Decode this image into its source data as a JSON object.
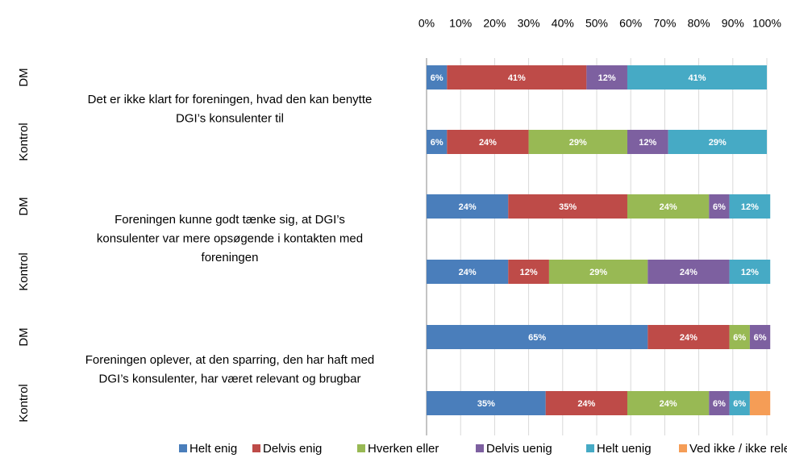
{
  "chart_data": {
    "type": "stacked_barh",
    "categories": [
      "DM",
      "Kontrol",
      "DM",
      "Kontrol",
      "DM",
      "Kontrol"
    ],
    "groups": [
      [
        "Det er ikke klart for foreningen, hvad den kan benytte",
        "DGI’s konsulenter til"
      ],
      [
        "Foreningen kunne godt tænke sig, at DGI’s",
        "konsulenter var mere opsøgende i kontakten med",
        "foreningen"
      ],
      [
        "Foreningen oplever, at den sparring, den har haft med",
        "DGI’s konsulenter, har været relevant og brugbar"
      ]
    ],
    "series": [
      {
        "name": "Helt enig",
        "color": "#4a7ebb",
        "values": [
          6,
          6,
          24,
          24,
          65,
          35
        ],
        "value_labels": [
          "6%",
          "6%",
          "24%",
          "24%",
          "65%",
          "35%"
        ]
      },
      {
        "name": "Delvis enig",
        "color": "#be4b48",
        "values": [
          41,
          24,
          35,
          12,
          24,
          24
        ],
        "value_labels": [
          "41%",
          "24%",
          "35%",
          "12%",
          "24%",
          "24%"
        ]
      },
      {
        "name": "Hverken eller",
        "color": "#98b954",
        "values": [
          null,
          29,
          24,
          29,
          6,
          24
        ],
        "value_labels": [
          null,
          "29%",
          "24%",
          "29%",
          "6%",
          "24%"
        ]
      },
      {
        "name": "Delvis uenig",
        "color": "#7d60a0",
        "values": [
          12,
          12,
          6,
          24,
          6,
          6
        ],
        "value_labels": [
          "12%",
          "12%",
          "6%",
          "24%",
          "6%",
          "6%"
        ]
      },
      {
        "name": "Helt uenig",
        "color": "#46aac5",
        "values": [
          41,
          29,
          12,
          12,
          null,
          6
        ],
        "value_labels": [
          "41%",
          "29%",
          "12%",
          "12%",
          null,
          "6%"
        ]
      },
      {
        "name": "Ved ikke / ikke relevant",
        "color": "#f59d56",
        "values": [
          null,
          null,
          null,
          null,
          null,
          6
        ],
        "value_labels": [
          null,
          null,
          null,
          null,
          null,
          null
        ]
      }
    ],
    "xlim": [
      0,
      100
    ],
    "xticks": [
      {
        "value": 0,
        "label": "0%"
      },
      {
        "value": 10,
        "label": "10%"
      },
      {
        "value": 20,
        "label": "20%"
      },
      {
        "value": 30,
        "label": "30%"
      },
      {
        "value": 40,
        "label": "40%"
      },
      {
        "value": 50,
        "label": "50%"
      },
      {
        "value": 60,
        "label": "60%"
      },
      {
        "value": 70,
        "label": "70%"
      },
      {
        "value": 80,
        "label": "80%"
      },
      {
        "value": 90,
        "label": "90%"
      },
      {
        "value": 100,
        "label": "100%"
      }
    ],
    "grid": true,
    "legend": "bottom"
  }
}
